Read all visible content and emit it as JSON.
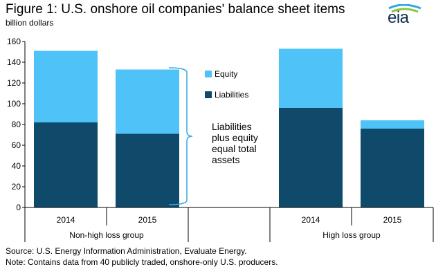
{
  "header": {
    "title": "Figure 1: U.S. onshore oil companies' balance sheet items",
    "units": "billion dollars",
    "logo_text": "eia"
  },
  "footer": {
    "source": "Source: U.S. Energy Information Administration, Evaluate Energy.",
    "note": "Note: Contains data from 40 publicly traded, onshore-only U.S. producers."
  },
  "annotation": {
    "line1": "Liabilities",
    "line2": "plus equity",
    "line3": "equal total",
    "line4": "assets"
  },
  "chart_data": {
    "type": "bar",
    "stacked": true,
    "categories": [
      "2014",
      "2015",
      "",
      "2014",
      "2015"
    ],
    "groups": [
      {
        "label": "Non-high loss group",
        "categories": [
          "2014",
          "2015"
        ]
      },
      {
        "label": "High loss group",
        "categories": [
          "2014",
          "2015"
        ]
      }
    ],
    "series": [
      {
        "name": "Liabilities",
        "color": "#0f4a6b",
        "values": [
          82,
          71,
          null,
          96,
          76
        ]
      },
      {
        "name": "Equity",
        "color": "#4fc3f7",
        "values": [
          69,
          62,
          null,
          57,
          8
        ]
      }
    ],
    "ylim": [
      0,
      160
    ],
    "yticks": [
      "0",
      "20",
      "40",
      "60",
      "80",
      "100",
      "120",
      "140",
      "160"
    ],
    "legend": [
      {
        "name": "Equity",
        "color": "#4fc3f7"
      },
      {
        "name": "Liabilities",
        "color": "#0f4a6b"
      }
    ],
    "grid": false
  }
}
